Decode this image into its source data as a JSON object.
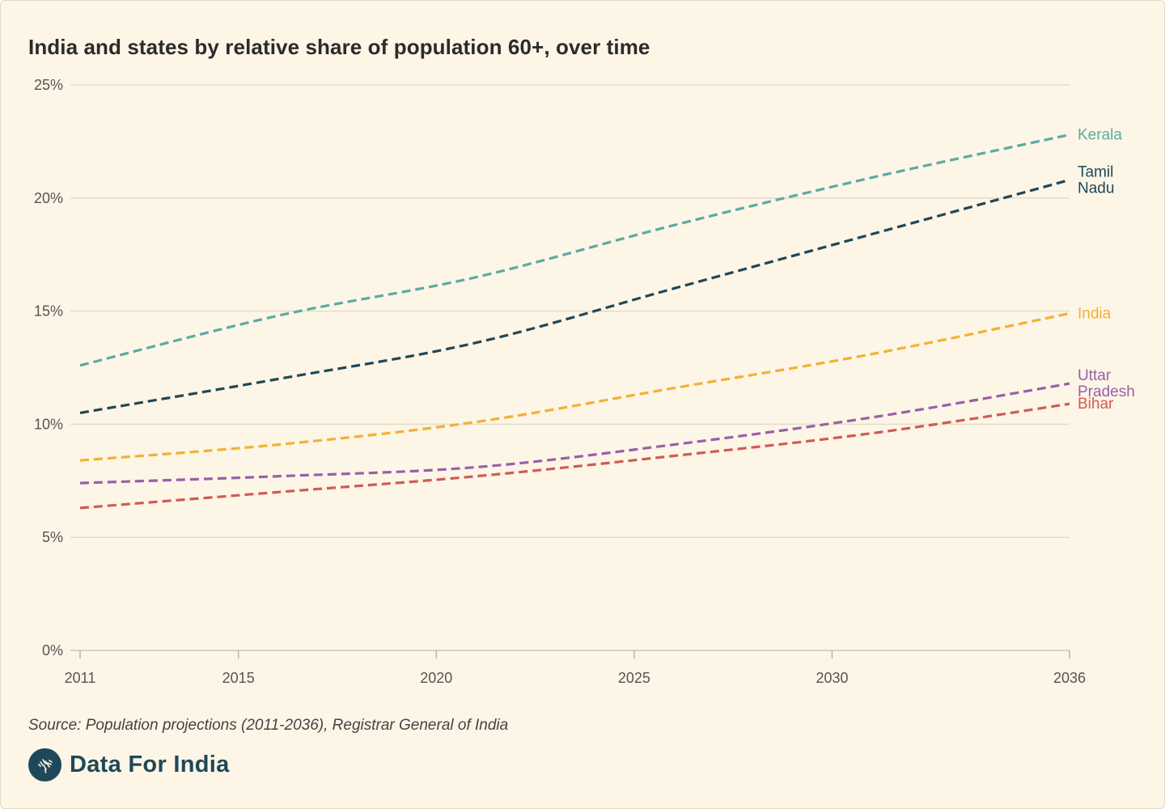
{
  "title": "India and states by relative share of population 60+, over time",
  "source": "Source: Population projections (2011-2036), Registrar General of India",
  "brand": {
    "name": "Data For India",
    "logo_icon": "india-map-icon"
  },
  "chart_data": {
    "type": "line",
    "title": "India and states by relative share of population 60+, over time",
    "xlabel": "",
    "ylabel": "",
    "x": [
      2011,
      2016,
      2021,
      2026,
      2031,
      2036
    ],
    "xticks": [
      2011,
      2015,
      2020,
      2025,
      2030,
      2036
    ],
    "xtick_labels": [
      "2011",
      "2015",
      "2020",
      "2025",
      "2030",
      "2036"
    ],
    "xlim": [
      2011,
      2036
    ],
    "ylim": [
      0,
      25
    ],
    "yticks": [
      0,
      5,
      10,
      15,
      20,
      25
    ],
    "ytick_labels": [
      "0%",
      "5%",
      "10%",
      "15%",
      "20%",
      "25%"
    ],
    "grid": true,
    "line_style": "dashed",
    "legend": "direct labels at right end of lines",
    "series": [
      {
        "name": "Kerala",
        "label_lines": [
          "Kerala"
        ],
        "color": "#5aaba2",
        "values": [
          12.6,
          14.8,
          16.5,
          18.8,
          20.9,
          22.8
        ]
      },
      {
        "name": "Tamil Nadu",
        "label_lines": [
          "Tamil",
          "Nadu"
        ],
        "color": "#1f4858",
        "values": [
          10.5,
          12.0,
          13.6,
          16.0,
          18.4,
          20.8
        ]
      },
      {
        "name": "India",
        "label_lines": [
          "India"
        ],
        "color": "#f2b134",
        "values": [
          8.4,
          9.1,
          10.1,
          11.6,
          13.1,
          14.9
        ]
      },
      {
        "name": "Uttar Pradesh",
        "label_lines": [
          "Uttar",
          "Pradesh"
        ],
        "color": "#9a5fa8",
        "values": [
          7.4,
          7.7,
          8.1,
          9.1,
          10.3,
          11.8
        ]
      },
      {
        "name": "Bihar",
        "label_lines": [
          "Bihar"
        ],
        "color": "#d15a56",
        "values": [
          6.3,
          7.0,
          7.7,
          8.6,
          9.6,
          10.9
        ]
      }
    ]
  }
}
